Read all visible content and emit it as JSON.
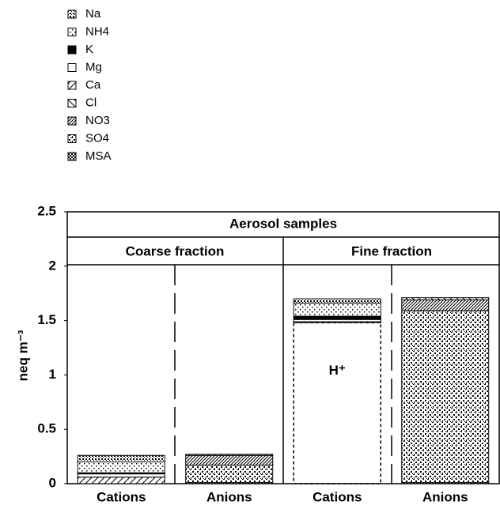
{
  "chart_data": {
    "type": "stacked-bar",
    "header": "Aerosol samples",
    "groups": [
      "Coarse fraction",
      "Fine fraction"
    ],
    "categories": [
      "Cations",
      "Anions",
      "Cations",
      "Anions"
    ],
    "ylabel": "neq m⁻³",
    "ylim": [
      0,
      2.5
    ],
    "yticks": [
      0,
      0.5,
      1,
      1.5,
      2,
      2.5
    ],
    "series": [
      {
        "name": "Na",
        "pattern": "na",
        "values": [
          0.06,
          null,
          0.04,
          null
        ]
      },
      {
        "name": "NH4",
        "pattern": "nh4",
        "values": [
          0.1,
          null,
          0.12,
          null
        ]
      },
      {
        "name": "K",
        "pattern": "k",
        "values": [
          0.01,
          null,
          0.03,
          null
        ]
      },
      {
        "name": "Mg",
        "pattern": "mg",
        "values": [
          0.03,
          null,
          0.02,
          null
        ]
      },
      {
        "name": "Ca",
        "pattern": "ca",
        "values": [
          0.06,
          null,
          0.01,
          null
        ]
      },
      {
        "name": "Cl",
        "pattern": "cl",
        "values": [
          null,
          0.01,
          null,
          0.02
        ]
      },
      {
        "name": "NO3",
        "pattern": "no3",
        "values": [
          null,
          0.09,
          null,
          0.1
        ]
      },
      {
        "name": "SO4",
        "pattern": "so4",
        "values": [
          null,
          0.16,
          null,
          1.58
        ]
      },
      {
        "name": "MSA",
        "pattern": "msa",
        "values": [
          null,
          0.01,
          null,
          0.01
        ]
      },
      {
        "name": "H⁺",
        "pattern": "none",
        "dashed": true,
        "in_legend": false,
        "values": [
          null,
          null,
          1.48,
          null
        ]
      }
    ]
  }
}
